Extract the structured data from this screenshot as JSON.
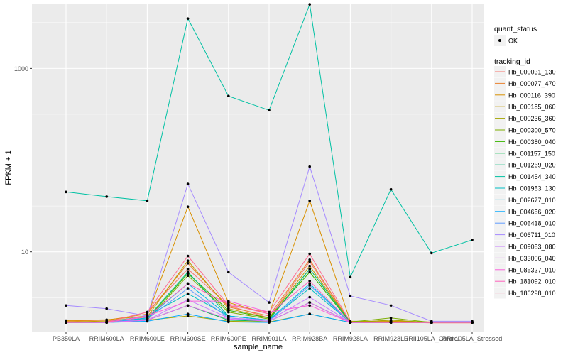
{
  "chart_data": {
    "type": "line",
    "scale": {
      "y": "log10"
    },
    "xlabel": "sample_name",
    "ylabel": "FPKM + 1",
    "categories": [
      "PB350LA",
      "RRIM600LA",
      "RRIM600LE",
      "RRIM600SE",
      "RRIM600PE",
      "RRIM901LA",
      "RRIM928BA",
      "RRIM928LA",
      "RRIM928LE",
      "RRII105LA_Control",
      "RRII105LA_Stressed"
    ],
    "y_ticks": [
      {
        "value": 10,
        "label": "10"
      },
      {
        "value": 1000,
        "label": "1000"
      }
    ],
    "ylim": [
      1.35,
      5100
    ],
    "grid": true,
    "legend_position": "right",
    "legends": {
      "quant": {
        "title": "quant_status",
        "items": [
          "OK"
        ]
      },
      "tracking_title": "tracking_id"
    },
    "series": [
      {
        "name": "Hb_000031_130",
        "color": "#F8766D",
        "values": [
          1.7,
          1.72,
          2.2,
          6.5,
          2.6,
          1.9,
          7.8,
          1.7,
          1.72,
          1.68,
          1.68
        ]
      },
      {
        "name": "Hb_000077_470",
        "color": "#EA8331",
        "values": [
          1.75,
          1.8,
          2.1,
          7.5,
          2.5,
          2.0,
          8.2,
          1.7,
          1.8,
          1.7,
          1.7
        ]
      },
      {
        "name": "Hb_000116_390",
        "color": "#D89000",
        "values": [
          1.78,
          1.82,
          2.0,
          31,
          2.8,
          2.1,
          36,
          1.75,
          1.75,
          1.72,
          1.72
        ]
      },
      {
        "name": "Hb_000185_060",
        "color": "#C09B00",
        "values": [
          1.72,
          1.76,
          1.95,
          8.0,
          2.4,
          1.9,
          7.0,
          1.72,
          1.72,
          1.7,
          1.7
        ]
      },
      {
        "name": "Hb_000236_360",
        "color": "#A3A500",
        "values": [
          1.7,
          1.7,
          1.8,
          2.0,
          1.75,
          1.72,
          2.1,
          1.7,
          1.8,
          1.7,
          1.7
        ]
      },
      {
        "name": "Hb_000300_570",
        "color": "#7CAE00",
        "values": [
          1.7,
          1.72,
          1.8,
          5.5,
          2.2,
          1.85,
          6.5,
          1.72,
          1.9,
          1.7,
          1.7
        ]
      },
      {
        "name": "Hb_000380_040",
        "color": "#39B600",
        "values": [
          1.7,
          1.72,
          1.85,
          5.8,
          2.3,
          1.9,
          6.0,
          1.7,
          1.72,
          1.7,
          1.7
        ]
      },
      {
        "name": "Hb_001157_150",
        "color": "#00BB4E",
        "values": [
          1.7,
          1.7,
          1.8,
          2.6,
          1.8,
          1.75,
          2.8,
          1.7,
          1.7,
          1.7,
          1.7
        ]
      },
      {
        "name": "Hb_001269_020",
        "color": "#00BF7D",
        "values": [
          1.7,
          1.7,
          1.9,
          6.0,
          2.0,
          1.8,
          6.5,
          1.7,
          1.7,
          1.7,
          1.7
        ]
      },
      {
        "name": "Hb_001454_340",
        "color": "#00C1A3",
        "values": [
          45,
          40,
          36,
          3500,
          500,
          350,
          5000,
          5.3,
          48,
          9.7,
          13.5
        ]
      },
      {
        "name": "Hb_001953_130",
        "color": "#00BFC4",
        "values": [
          1.7,
          1.72,
          2.0,
          3.5,
          2.0,
          1.8,
          4.0,
          1.7,
          1.7,
          1.7,
          1.7
        ]
      },
      {
        "name": "Hb_002677_010",
        "color": "#00B8E7",
        "values": [
          1.7,
          1.7,
          1.9,
          4.5,
          2.0,
          1.8,
          4.5,
          1.7,
          1.7,
          1.7,
          1.7
        ]
      },
      {
        "name": "Hb_004656_020",
        "color": "#00A9FF",
        "values": [
          1.7,
          1.7,
          1.75,
          2.1,
          1.72,
          1.7,
          2.1,
          1.7,
          1.7,
          1.7,
          1.7
        ]
      },
      {
        "name": "Hb_006418_010",
        "color": "#619CFF",
        "values": [
          1.7,
          1.7,
          1.85,
          4.0,
          1.9,
          1.75,
          4.3,
          1.7,
          1.7,
          1.7,
          1.7
        ]
      },
      {
        "name": "Hb_006711_010",
        "color": "#A58AFF",
        "values": [
          2.6,
          2.4,
          2.0,
          55,
          6.0,
          2.8,
          85,
          3.3,
          2.6,
          1.75,
          1.75
        ]
      },
      {
        "name": "Hb_009083_080",
        "color": "#C77CFF",
        "values": [
          1.7,
          1.7,
          1.8,
          3.0,
          1.9,
          1.8,
          3.2,
          1.7,
          1.7,
          1.7,
          1.7
        ]
      },
      {
        "name": "Hb_033006_040",
        "color": "#E76BF3",
        "values": [
          1.7,
          1.7,
          1.8,
          2.6,
          1.85,
          1.75,
          2.8,
          1.7,
          1.7,
          1.7,
          1.7
        ]
      },
      {
        "name": "Hb_085327_010",
        "color": "#FA62DB",
        "values": [
          1.7,
          1.7,
          2.0,
          2.9,
          2.9,
          2.2,
          2.6,
          1.7,
          1.7,
          1.7,
          1.7
        ]
      },
      {
        "name": "Hb_181092_010",
        "color": "#FF62BC",
        "values": [
          1.7,
          1.72,
          1.95,
          4.5,
          2.7,
          2.1,
          4.8,
          1.7,
          1.7,
          1.7,
          1.7
        ]
      },
      {
        "name": "Hb_186298_010",
        "color": "#FF6C91",
        "values": [
          1.7,
          1.72,
          2.2,
          9.0,
          2.6,
          2.2,
          9.5,
          1.72,
          1.7,
          1.7,
          1.7
        ]
      }
    ]
  }
}
